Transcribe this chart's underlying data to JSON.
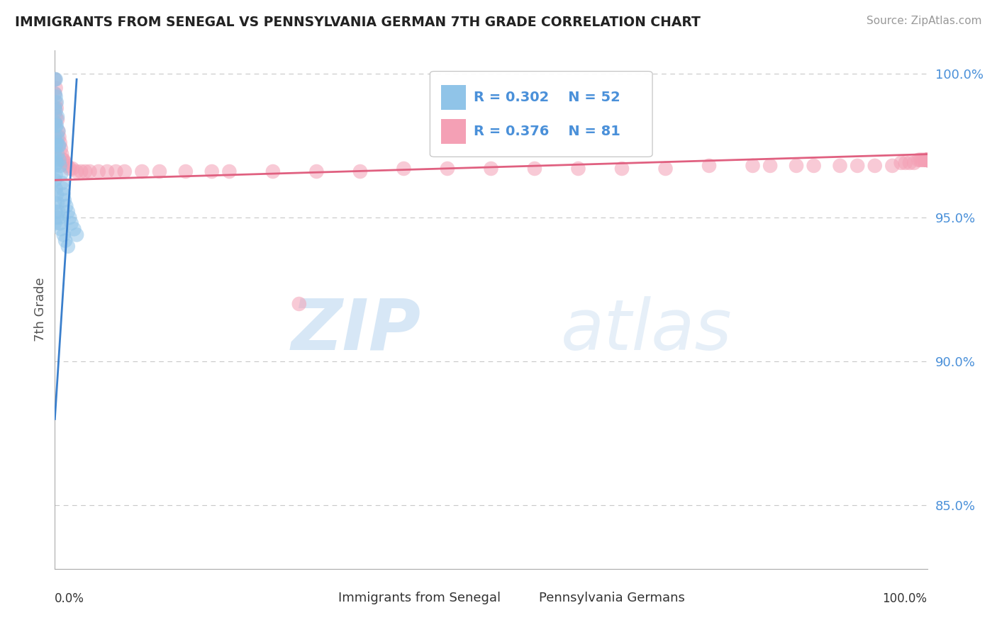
{
  "title": "IMMIGRANTS FROM SENEGAL VS PENNSYLVANIA GERMAN 7TH GRADE CORRELATION CHART",
  "source": "Source: ZipAtlas.com",
  "ylabel": "7th Grade",
  "legend_label_blue": "Immigrants from Senegal",
  "legend_label_pink": "Pennsylvania Germans",
  "R_blue": 0.302,
  "N_blue": 52,
  "R_pink": 0.376,
  "N_pink": 81,
  "color_blue": "#90C4E8",
  "color_pink": "#F4A0B5",
  "color_trendline_blue": "#3A7FCC",
  "color_trendline_pink": "#E06080",
  "color_grid": "#C8C8C8",
  "color_ytick": "#4A90D9",
  "color_title": "#222222",
  "watermark_zip": "ZIP",
  "watermark_atlas": "atlas",
  "ytick_labels": [
    "100.0%",
    "95.0%",
    "90.0%",
    "85.0%"
  ],
  "ytick_values": [
    1.0,
    0.95,
    0.9,
    0.85
  ],
  "xlim": [
    0.0,
    1.0
  ],
  "ylim": [
    0.828,
    1.008
  ],
  "blue_x": [
    0.0,
    0.0,
    0.0,
    0.0,
    0.0,
    0.0,
    0.0,
    0.0,
    0.001,
    0.001,
    0.001,
    0.001,
    0.001,
    0.001,
    0.001,
    0.002,
    0.002,
    0.002,
    0.002,
    0.003,
    0.003,
    0.003,
    0.004,
    0.004,
    0.005,
    0.005,
    0.006,
    0.007,
    0.008,
    0.009,
    0.01,
    0.011,
    0.013,
    0.015,
    0.017,
    0.019,
    0.022,
    0.025,
    0.0,
    0.0,
    0.001,
    0.001,
    0.002,
    0.002,
    0.003,
    0.004,
    0.005,
    0.006,
    0.007,
    0.01,
    0.012,
    0.015
  ],
  "blue_y": [
    0.998,
    0.993,
    0.988,
    0.983,
    0.978,
    0.973,
    0.968,
    0.963,
    0.998,
    0.992,
    0.987,
    0.982,
    0.975,
    0.97,
    0.965,
    0.99,
    0.982,
    0.976,
    0.969,
    0.985,
    0.978,
    0.972,
    0.98,
    0.975,
    0.975,
    0.97,
    0.968,
    0.965,
    0.962,
    0.96,
    0.958,
    0.956,
    0.954,
    0.952,
    0.95,
    0.948,
    0.946,
    0.944,
    0.955,
    0.948,
    0.96,
    0.952,
    0.958,
    0.95,
    0.955,
    0.952,
    0.95,
    0.948,
    0.946,
    0.944,
    0.942,
    0.94
  ],
  "pink_x": [
    0.0,
    0.0,
    0.0,
    0.0,
    0.0,
    0.001,
    0.001,
    0.001,
    0.002,
    0.003,
    0.004,
    0.005,
    0.006,
    0.007,
    0.008,
    0.009,
    0.01,
    0.012,
    0.014,
    0.017,
    0.02,
    0.025,
    0.03,
    0.035,
    0.04,
    0.05,
    0.06,
    0.07,
    0.08,
    0.1,
    0.12,
    0.15,
    0.18,
    0.2,
    0.25,
    0.3,
    0.35,
    0.4,
    0.45,
    0.5,
    0.55,
    0.6,
    0.65,
    0.7,
    0.75,
    0.8,
    0.82,
    0.85,
    0.87,
    0.9,
    0.92,
    0.94,
    0.96,
    0.97,
    0.975,
    0.98,
    0.985,
    0.99,
    0.992,
    0.994,
    0.996,
    0.998,
    1.0,
    1.0,
    1.0,
    1.0,
    1.0,
    1.0,
    1.0,
    1.0,
    1.0,
    1.0,
    1.0,
    1.0,
    1.0,
    1.0,
    1.0,
    1.0,
    1.0,
    1.0,
    0.28
  ],
  "pink_y": [
    0.998,
    0.993,
    0.988,
    0.983,
    0.978,
    0.995,
    0.99,
    0.985,
    0.988,
    0.984,
    0.98,
    0.978,
    0.976,
    0.974,
    0.972,
    0.97,
    0.97,
    0.969,
    0.968,
    0.967,
    0.967,
    0.966,
    0.966,
    0.966,
    0.966,
    0.966,
    0.966,
    0.966,
    0.966,
    0.966,
    0.966,
    0.966,
    0.966,
    0.966,
    0.966,
    0.966,
    0.966,
    0.967,
    0.967,
    0.967,
    0.967,
    0.967,
    0.967,
    0.967,
    0.968,
    0.968,
    0.968,
    0.968,
    0.968,
    0.968,
    0.968,
    0.968,
    0.968,
    0.969,
    0.969,
    0.969,
    0.969,
    0.97,
    0.97,
    0.97,
    0.97,
    0.97,
    0.97,
    0.97,
    0.97,
    0.97,
    0.97,
    0.97,
    0.97,
    0.97,
    0.97,
    0.97,
    0.97,
    0.97,
    0.97,
    0.97,
    0.97,
    0.97,
    0.97,
    0.97,
    0.92
  ],
  "blue_trendline_x": [
    0.0,
    0.025
  ],
  "blue_trendline_y": [
    0.88,
    0.998
  ],
  "pink_trendline_x": [
    0.0,
    1.0
  ],
  "pink_trendline_y": [
    0.963,
    0.972
  ]
}
